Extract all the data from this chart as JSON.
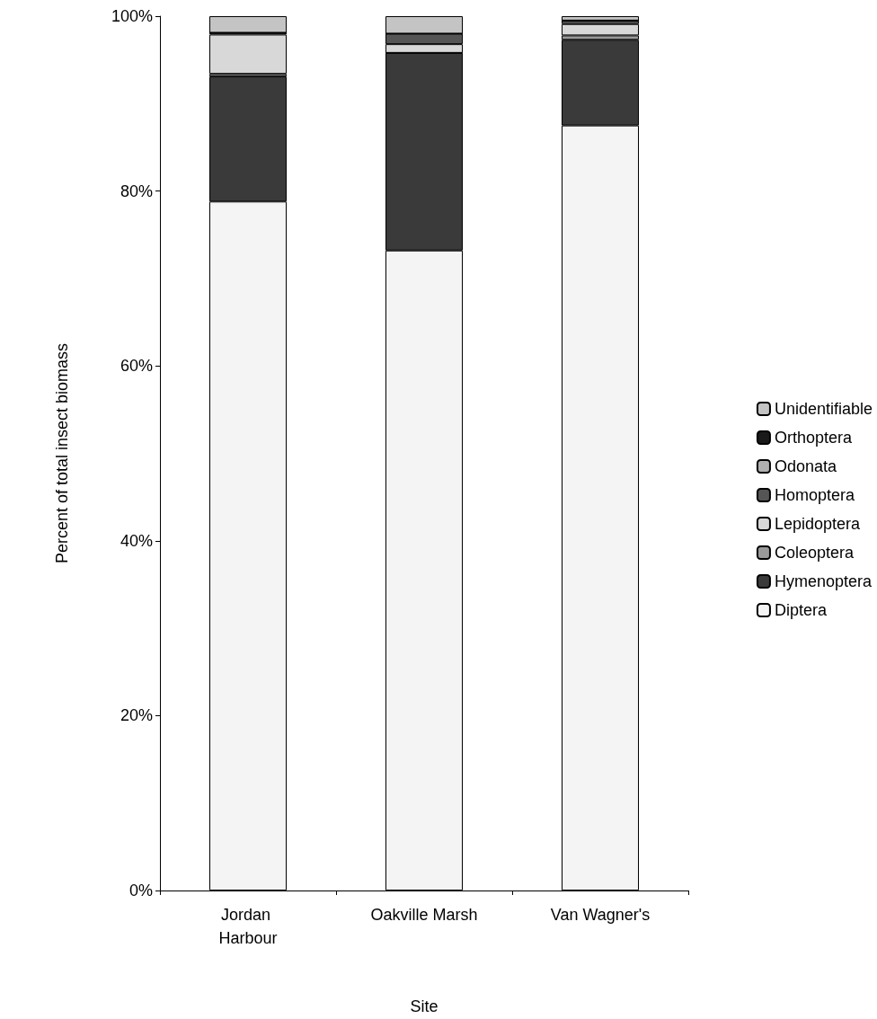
{
  "chart_data": {
    "type": "bar",
    "stacked": true,
    "xlabel": "Site",
    "ylabel": "Percent of total insect biomass",
    "categories": [
      "Jordan Harbour",
      "Oakville Marsh",
      "Van Wagner's"
    ],
    "series": [
      {
        "name": "Diptera",
        "color": "#f4f4f4",
        "values": [
          78.8,
          73.2,
          87.5
        ]
      },
      {
        "name": "Hymenoptera",
        "color": "#3a3a3a",
        "values": [
          14.3,
          22.6,
          9.8
        ]
      },
      {
        "name": "Coleoptera",
        "color": "#9a9a9a",
        "values": [
          0.3,
          0,
          0.5
        ]
      },
      {
        "name": "Lepidoptera",
        "color": "#d8d8d8",
        "values": [
          4.5,
          1.0,
          1.3
        ]
      },
      {
        "name": "Homoptera",
        "color": "#555555",
        "values": [
          0.2,
          1.2,
          0.4
        ]
      },
      {
        "name": "Odonata",
        "color": "#b0b0b0",
        "values": [
          0,
          0,
          0
        ]
      },
      {
        "name": "Orthoptera",
        "color": "#1a1a1a",
        "values": [
          0,
          0,
          0
        ]
      },
      {
        "name": "Unidentifiable",
        "color": "#c4c4c4",
        "values": [
          1.9,
          2.0,
          0.5
        ]
      }
    ],
    "ylim": [
      0,
      100
    ],
    "yticks": [
      {
        "value": 0,
        "label": "0%"
      },
      {
        "value": 20,
        "label": "20%"
      },
      {
        "value": 40,
        "label": "40%"
      },
      {
        "value": 60,
        "label": "60%"
      },
      {
        "value": 80,
        "label": "80%"
      },
      {
        "value": 100,
        "label": "100%"
      }
    ],
    "grid": false,
    "legend": "right"
  }
}
